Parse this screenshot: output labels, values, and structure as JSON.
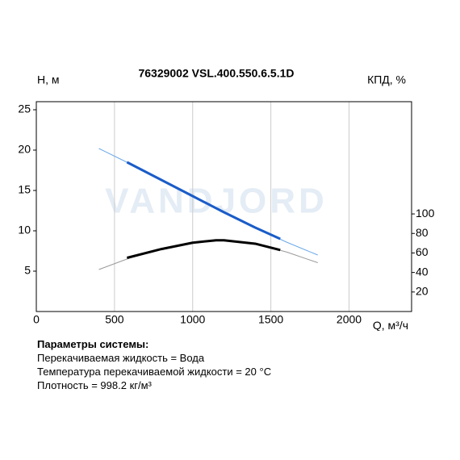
{
  "chart_data": {
    "type": "line",
    "title": "76329002 VSL.400.550.6.5.1D",
    "watermark": "VANDJORD",
    "y_label": "H, м",
    "y2_label": "КПД, %",
    "x_label": "Q, м³/ч",
    "xlim": [
      0,
      2400
    ],
    "xticks": [
      0,
      500,
      1000,
      1500,
      2000
    ],
    "ylim": [
      0,
      26
    ],
    "yticks": [
      5,
      10,
      15,
      20,
      25
    ],
    "y2lim": [
      0,
      215
    ],
    "y2ticks": [
      20,
      40,
      60,
      80,
      100
    ],
    "grid": "x",
    "series": [
      {
        "color": "#6aa8e8",
        "line_width": 1,
        "axis": "y",
        "x": [
          400,
          600,
          800,
          1000,
          1200,
          1400,
          1600,
          1800
        ],
        "values": [
          20.2,
          18.3,
          16.3,
          14.3,
          12.3,
          10.4,
          8.6,
          7.0
        ]
      },
      {
        "color": "#1a5cc8",
        "line_width": 3,
        "axis": "y",
        "x": [
          580,
          800,
          1000,
          1200,
          1400,
          1560
        ],
        "values": [
          18.5,
          16.3,
          14.3,
          12.3,
          10.4,
          9.0
        ]
      },
      {
        "color": "#999999",
        "line_width": 1,
        "axis": "y2",
        "x": [
          400,
          600,
          800,
          1000,
          1150,
          1200,
          1400,
          1600,
          1800
        ],
        "values": [
          43,
          55,
          64,
          70.5,
          73,
          73,
          69.5,
          61,
          50
        ]
      },
      {
        "color": "#000000",
        "line_width": 3,
        "axis": "y2",
        "x": [
          580,
          800,
          1000,
          1150,
          1200,
          1400,
          1560
        ],
        "values": [
          55,
          64,
          70.5,
          73,
          73,
          69.5,
          63
        ]
      }
    ]
  },
  "info": {
    "heading": "Параметры системы:",
    "lines": [
      "Перекачиваемая жидкость = Вода",
      "Температура перекачиваемой жидкости = 20 °C",
      "Плотность = 998.2 кг/м³"
    ]
  }
}
